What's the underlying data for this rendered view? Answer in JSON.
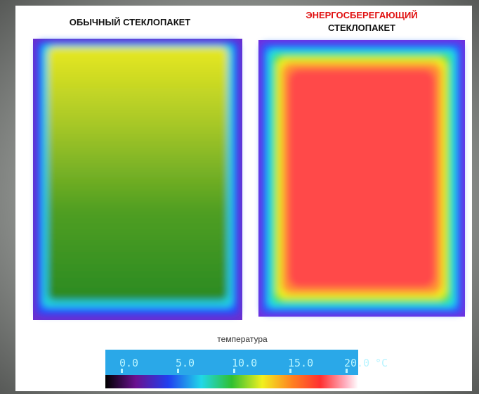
{
  "titles": {
    "regular": "ОБЫЧНЫЙ СТЕКЛОПАКЕТ",
    "energy_line1": "ЭНЕРГОСБЕРЕГАЮЩИЙ",
    "energy_line2": "СТЕКЛОПАКЕТ"
  },
  "scale": {
    "title": "температура",
    "labels": [
      "0.0",
      "5.0",
      "10.0",
      "15.0",
      "20.0"
    ],
    "unit": "°C"
  }
}
